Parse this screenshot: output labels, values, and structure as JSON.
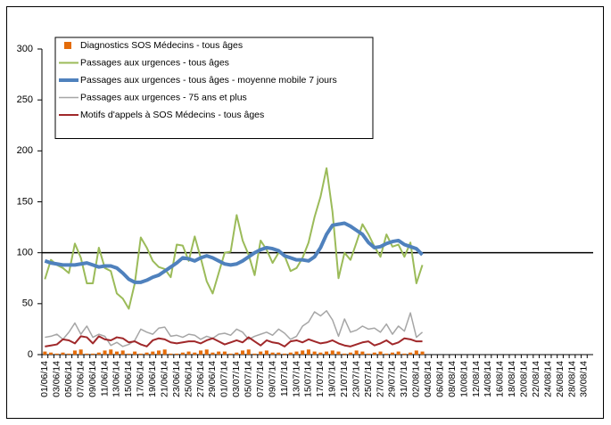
{
  "chart_data": {
    "type": "line",
    "categories": [
      "01/06/14",
      null,
      "03/06/14",
      null,
      "05/06/14",
      null,
      "07/06/14",
      null,
      "09/06/14",
      null,
      "11/06/14",
      null,
      "13/06/14",
      null,
      "15/06/14",
      null,
      "17/06/14",
      null,
      "19/06/14",
      null,
      "21/06/14",
      null,
      "23/06/14",
      null,
      "25/06/14",
      null,
      "27/06/14",
      null,
      "29/06/14",
      null,
      "01/07/14",
      null,
      "03/07/14",
      null,
      "05/07/14",
      null,
      "07/07/14",
      null,
      "09/07/14",
      null,
      "11/07/14",
      null,
      "13/07/14",
      null,
      "15/07/14",
      null,
      "17/07/14",
      null,
      "19/07/14",
      null,
      "21/07/14",
      null,
      "23/07/14",
      null,
      "25/07/14",
      null,
      "27/07/14",
      null,
      "29/07/14",
      null,
      "31/07/14",
      null,
      "02/08/14",
      null,
      "04/08/14",
      null,
      "06/08/14",
      null,
      "08/08/14",
      null,
      "10/08/14",
      null,
      "12/08/14",
      null,
      "14/08/14",
      null,
      "16/08/14",
      null,
      "18/08/14",
      null,
      "20/08/14",
      null,
      "22/08/14",
      null,
      "24/08/14",
      null,
      "26/08/14",
      null,
      "28/08/14",
      null,
      "30/08/14",
      null
    ],
    "ylim": [
      0,
      300
    ],
    "yticks": [
      0,
      50,
      100,
      150,
      200,
      250,
      300
    ],
    "reference_line": 100,
    "series": [
      {
        "name": "Diagnostics SOS Médecins - tous âges",
        "type": "bar",
        "color": "#e46c0a",
        "values": [
          3,
          2,
          1,
          2,
          1,
          4,
          5,
          1,
          1,
          2,
          4,
          5,
          3,
          4,
          1,
          3,
          1,
          2,
          3,
          4,
          5,
          1,
          1,
          2,
          3,
          2,
          4,
          5,
          2,
          3,
          3,
          1,
          2,
          4,
          5,
          1,
          3,
          4,
          2,
          2,
          1,
          2,
          3,
          4,
          5,
          3,
          2,
          3,
          4,
          3,
          1,
          2,
          4,
          3,
          1,
          2,
          3,
          1,
          2,
          3,
          1,
          2,
          4,
          3,
          null,
          null,
          null,
          null,
          null,
          null,
          null,
          null,
          null,
          null,
          null,
          null,
          null,
          null,
          null,
          null,
          null,
          null,
          null,
          null,
          null,
          null,
          null,
          null,
          null,
          null,
          null,
          null
        ]
      },
      {
        "name": "Passages aux urgences - tous âges",
        "type": "line",
        "color": "#9bbb59",
        "width": 2,
        "values": [
          74,
          93,
          88,
          85,
          80,
          109,
          95,
          70,
          70,
          105,
          85,
          82,
          60,
          55,
          45,
          70,
          115,
          105,
          92,
          86,
          84,
          76,
          108,
          107,
          92,
          116,
          95,
          72,
          60,
          80,
          100,
          101,
          137,
          112,
          98,
          78,
          112,
          103,
          90,
          100,
          97,
          82,
          85,
          95,
          110,
          135,
          155,
          183,
          140,
          75,
          100,
          93,
          110,
          128,
          118,
          106,
          96,
          118,
          106,
          108,
          96,
          110,
          70,
          88,
          null,
          null,
          null,
          null,
          null,
          null,
          null,
          null,
          null,
          null,
          null,
          null,
          null,
          null,
          null,
          null,
          null,
          null,
          null,
          null,
          null,
          null,
          null,
          null,
          null,
          null,
          null,
          null
        ]
      },
      {
        "name": "Passages aux urgences - tous âges - moyenne mobile 7 jours",
        "type": "line",
        "color": "#4f81bd",
        "width": 4,
        "values": [
          92,
          90,
          89,
          88,
          88,
          88,
          89,
          90,
          88,
          86,
          87,
          87,
          85,
          80,
          74,
          71,
          71,
          73,
          76,
          78,
          82,
          86,
          90,
          95,
          94,
          92,
          95,
          97,
          95,
          92,
          89,
          88,
          89,
          92,
          96,
          100,
          103,
          105,
          104,
          102,
          97,
          95,
          93,
          93,
          92,
          96,
          105,
          118,
          127,
          128,
          129,
          126,
          122,
          118,
          110,
          105,
          106,
          109,
          111,
          112,
          108,
          106,
          104,
          98,
          null,
          null,
          null,
          null,
          null,
          null,
          null,
          null,
          null,
          null,
          null,
          null,
          null,
          null,
          null,
          null,
          null,
          null,
          null,
          null,
          null,
          null,
          null,
          null,
          null,
          null,
          null,
          null
        ]
      },
      {
        "name": "Passages aux urgences - 75 ans et plus",
        "type": "line",
        "color": "#a6a6a6",
        "width": 1.5,
        "values": [
          17,
          18,
          20,
          15,
          22,
          31,
          20,
          28,
          17,
          20,
          18,
          9,
          12,
          8,
          10,
          14,
          25,
          22,
          20,
          26,
          27,
          18,
          19,
          17,
          20,
          19,
          15,
          18,
          16,
          20,
          21,
          19,
          25,
          22,
          15,
          18,
          20,
          22,
          19,
          25,
          21,
          15,
          18,
          28,
          32,
          42,
          38,
          43,
          34,
          18,
          35,
          22,
          24,
          28,
          25,
          26,
          22,
          30,
          20,
          28,
          23,
          41,
          17,
          22,
          null,
          null,
          null,
          null,
          null,
          null,
          null,
          null,
          null,
          null,
          null,
          null,
          null,
          null,
          null,
          null,
          null,
          null,
          null,
          null,
          null,
          null,
          null,
          null,
          null,
          null,
          null,
          null
        ]
      },
      {
        "name": "Motifs d'appels à SOS Médecins - tous âges",
        "type": "line",
        "color": "#a0282a",
        "width": 2,
        "values": [
          8,
          9,
          10,
          15,
          14,
          11,
          18,
          17,
          11,
          18,
          15,
          14,
          17,
          16,
          12,
          13,
          10,
          8,
          14,
          16,
          15,
          12,
          11,
          12,
          13,
          13,
          11,
          14,
          16,
          13,
          10,
          12,
          14,
          12,
          17,
          13,
          9,
          14,
          12,
          11,
          8,
          13,
          14,
          12,
          15,
          13,
          11,
          12,
          14,
          11,
          9,
          8,
          10,
          12,
          13,
          9,
          11,
          14,
          10,
          12,
          16,
          15,
          13,
          13,
          null,
          null,
          null,
          null,
          null,
          null,
          null,
          null,
          null,
          null,
          null,
          null,
          null,
          null,
          null,
          null,
          null,
          null,
          null,
          null,
          null,
          null,
          null,
          null,
          null,
          null,
          null,
          null
        ]
      }
    ]
  }
}
